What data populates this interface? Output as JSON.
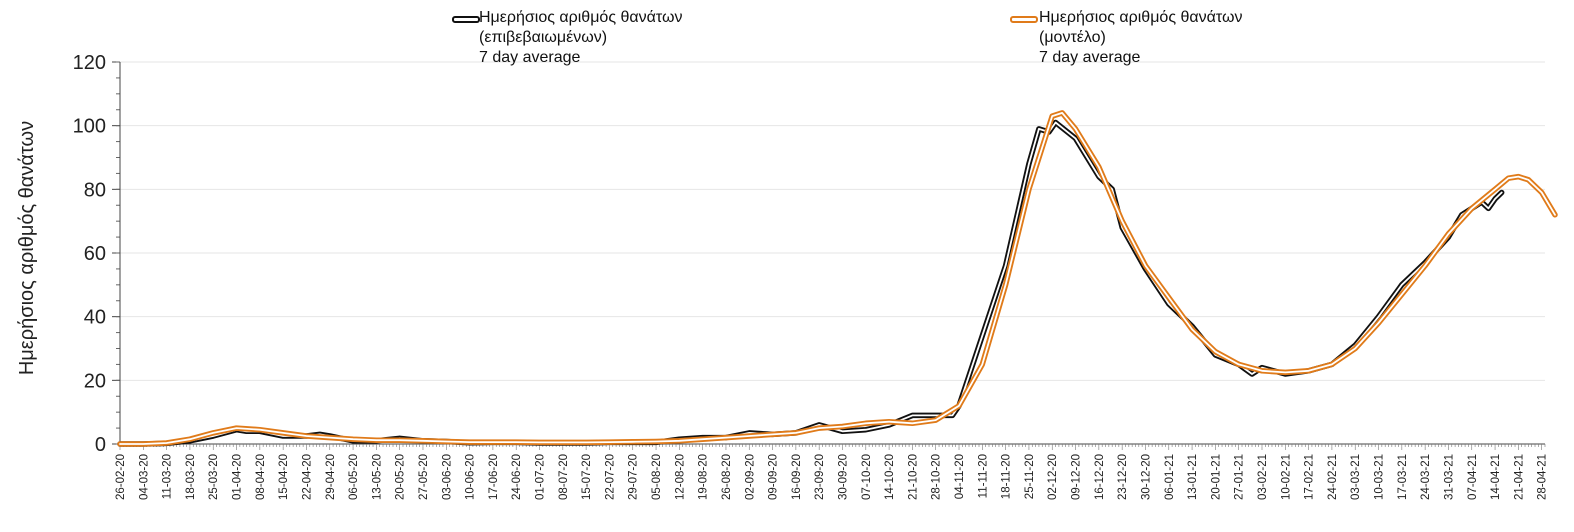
{
  "chart_data": {
    "type": "line",
    "ylabel": "Ημερήσιος αριθμός θανάτων",
    "ylim": [
      0,
      120
    ],
    "yticks": [
      "0",
      "20",
      "40",
      "60",
      "80",
      "100",
      "120"
    ],
    "grid": "horizontal",
    "x_tick_labels": [
      "26-02-20",
      "04-03-20",
      "11-03-20",
      "18-03-20",
      "25-03-20",
      "01-04-20",
      "08-04-20",
      "15-04-20",
      "22-04-20",
      "29-04-20",
      "06-05-20",
      "13-05-20",
      "20-05-20",
      "27-05-20",
      "03-06-20",
      "10-06-20",
      "17-06-20",
      "24-06-20",
      "01-07-20",
      "08-07-20",
      "15-07-20",
      "22-07-20",
      "29-07-20",
      "05-08-20",
      "12-08-20",
      "19-08-20",
      "26-08-20",
      "02-09-20",
      "09-09-20",
      "16-09-20",
      "23-09-20",
      "30-09-20",
      "07-10-20",
      "14-10-20",
      "21-10-20",
      "28-10-20",
      "04-11-20",
      "11-11-20",
      "18-11-20",
      "25-11-20",
      "02-12-20",
      "09-12-20",
      "16-12-20",
      "23-12-20",
      "30-12-20",
      "06-01-21",
      "13-01-21",
      "20-01-21",
      "27-01-21",
      "03-02-21",
      "10-02-21",
      "17-02-21",
      "24-02-21",
      "03-03-21",
      "10-03-21",
      "17-03-21",
      "24-03-21",
      "31-03-21",
      "07-04-21",
      "14-04-21",
      "21-04-21",
      "28-04-21"
    ],
    "series": [
      {
        "name": "Ημερήσιος αριθμός θανάτων (επιβεβαιωμένων) 7 day average",
        "legend_lines": [
          "Ημερήσιος αριθμός θανάτων",
          "(επιβεβαιωμένων)",
          "7 day average"
        ],
        "color": "#111111",
        "style": "double-line",
        "x_start": "26-02-20",
        "x_end": "16-04-21",
        "points": [
          [
            "26-02-20",
            0
          ],
          [
            "04-03-20",
            0
          ],
          [
            "11-03-20",
            0.2
          ],
          [
            "18-03-20",
            1
          ],
          [
            "25-03-20",
            2.5
          ],
          [
            "01-04-20",
            4.5
          ],
          [
            "04-04-20",
            4
          ],
          [
            "08-04-20",
            4
          ],
          [
            "15-04-20",
            2.5
          ],
          [
            "22-04-20",
            2.5
          ],
          [
            "26-04-20",
            3
          ],
          [
            "29-04-20",
            2.5
          ],
          [
            "06-05-20",
            1
          ],
          [
            "13-05-20",
            1
          ],
          [
            "20-05-20",
            1.8
          ],
          [
            "27-05-20",
            1
          ],
          [
            "03-06-20",
            0.8
          ],
          [
            "10-06-20",
            0.4
          ],
          [
            "17-06-20",
            0.5
          ],
          [
            "24-06-20",
            0.5
          ],
          [
            "01-07-20",
            0.3
          ],
          [
            "08-07-20",
            0.3
          ],
          [
            "15-07-20",
            0.3
          ],
          [
            "22-07-20",
            0.5
          ],
          [
            "29-07-20",
            0.5
          ],
          [
            "05-08-20",
            0.5
          ],
          [
            "12-08-20",
            1.5
          ],
          [
            "19-08-20",
            2
          ],
          [
            "26-08-20",
            2
          ],
          [
            "02-09-20",
            3.5
          ],
          [
            "09-09-20",
            3
          ],
          [
            "16-09-20",
            3.5
          ],
          [
            "23-09-20",
            6
          ],
          [
            "30-09-20",
            4
          ],
          [
            "07-10-20",
            4.5
          ],
          [
            "14-10-20",
            6
          ],
          [
            "21-10-20",
            9
          ],
          [
            "28-10-20",
            9
          ],
          [
            "02-11-20",
            9
          ],
          [
            "04-11-20",
            12
          ],
          [
            "11-11-20",
            34
          ],
          [
            "18-11-20",
            56
          ],
          [
            "25-11-20",
            88
          ],
          [
            "28-11-20",
            99
          ],
          [
            "01-12-20",
            98
          ],
          [
            "03-12-20",
            101
          ],
          [
            "09-12-20",
            96
          ],
          [
            "16-12-20",
            84
          ],
          [
            "20-12-20",
            80
          ],
          [
            "23-12-20",
            68
          ],
          [
            "30-12-20",
            55
          ],
          [
            "06-01-21",
            44
          ],
          [
            "13-01-21",
            37
          ],
          [
            "20-01-21",
            28
          ],
          [
            "27-01-21",
            25
          ],
          [
            "31-01-21",
            22
          ],
          [
            "03-02-21",
            24
          ],
          [
            "10-02-21",
            22
          ],
          [
            "17-02-21",
            23
          ],
          [
            "24-02-21",
            25
          ],
          [
            "03-03-21",
            31
          ],
          [
            "10-03-21",
            40
          ],
          [
            "17-03-21",
            50
          ],
          [
            "24-03-21",
            57
          ],
          [
            "31-03-21",
            65
          ],
          [
            "04-04-21",
            72
          ],
          [
            "07-04-21",
            74
          ],
          [
            "10-04-21",
            76
          ],
          [
            "12-04-21",
            74
          ],
          [
            "14-04-21",
            77
          ],
          [
            "16-04-21",
            79
          ]
        ]
      },
      {
        "name": "Ημερήσιος αριθμός θανάτων (μοντέλο) 7 day average",
        "legend_lines": [
          "Ημερήσιος αριθμός θανάτων",
          "(μοντέλο)",
          "7 day average"
        ],
        "color": "#e07b1a",
        "style": "double-line",
        "x_start": "26-02-20",
        "x_end": "02-05-21",
        "points": [
          [
            "26-02-20",
            0
          ],
          [
            "04-03-20",
            0
          ],
          [
            "11-03-20",
            0.3
          ],
          [
            "18-03-20",
            1.5
          ],
          [
            "25-03-20",
            3.5
          ],
          [
            "01-04-20",
            5
          ],
          [
            "08-04-20",
            4.5
          ],
          [
            "15-04-20",
            3.5
          ],
          [
            "22-04-20",
            2.5
          ],
          [
            "29-04-20",
            2
          ],
          [
            "06-05-20",
            1.5
          ],
          [
            "13-05-20",
            1.2
          ],
          [
            "20-05-20",
            1.2
          ],
          [
            "27-05-20",
            1
          ],
          [
            "03-06-20",
            0.8
          ],
          [
            "10-06-20",
            0.6
          ],
          [
            "17-06-20",
            0.6
          ],
          [
            "24-06-20",
            0.6
          ],
          [
            "01-07-20",
            0.5
          ],
          [
            "08-07-20",
            0.5
          ],
          [
            "15-07-20",
            0.5
          ],
          [
            "22-07-20",
            0.6
          ],
          [
            "29-07-20",
            0.7
          ],
          [
            "05-08-20",
            0.8
          ],
          [
            "12-08-20",
            1
          ],
          [
            "19-08-20",
            1.5
          ],
          [
            "26-08-20",
            2
          ],
          [
            "02-09-20",
            2.5
          ],
          [
            "09-09-20",
            3
          ],
          [
            "16-09-20",
            3.5
          ],
          [
            "23-09-20",
            5
          ],
          [
            "30-09-20",
            5.5
          ],
          [
            "07-10-20",
            6.5
          ],
          [
            "14-10-20",
            7
          ],
          [
            "21-10-20",
            6.5
          ],
          [
            "28-10-20",
            7.5
          ],
          [
            "04-11-20",
            12
          ],
          [
            "11-11-20",
            25
          ],
          [
            "18-11-20",
            50
          ],
          [
            "25-11-20",
            80
          ],
          [
            "02-12-20",
            103
          ],
          [
            "05-12-20",
            104
          ],
          [
            "09-12-20",
            99
          ],
          [
            "16-12-20",
            87
          ],
          [
            "23-12-20",
            70
          ],
          [
            "30-12-20",
            56
          ],
          [
            "06-01-21",
            46
          ],
          [
            "13-01-21",
            36
          ],
          [
            "20-01-21",
            29
          ],
          [
            "27-01-21",
            25
          ],
          [
            "03-02-21",
            23
          ],
          [
            "10-02-21",
            22.5
          ],
          [
            "17-02-21",
            23
          ],
          [
            "24-02-21",
            25
          ],
          [
            "03-03-21",
            30
          ],
          [
            "10-03-21",
            38
          ],
          [
            "17-03-21",
            47
          ],
          [
            "24-03-21",
            56
          ],
          [
            "31-03-21",
            66
          ],
          [
            "07-04-21",
            74
          ],
          [
            "14-04-21",
            80
          ],
          [
            "18-04-21",
            83.5
          ],
          [
            "21-04-21",
            84
          ],
          [
            "24-04-21",
            83
          ],
          [
            "28-04-21",
            79
          ],
          [
            "02-05-21",
            72
          ]
        ]
      }
    ]
  }
}
